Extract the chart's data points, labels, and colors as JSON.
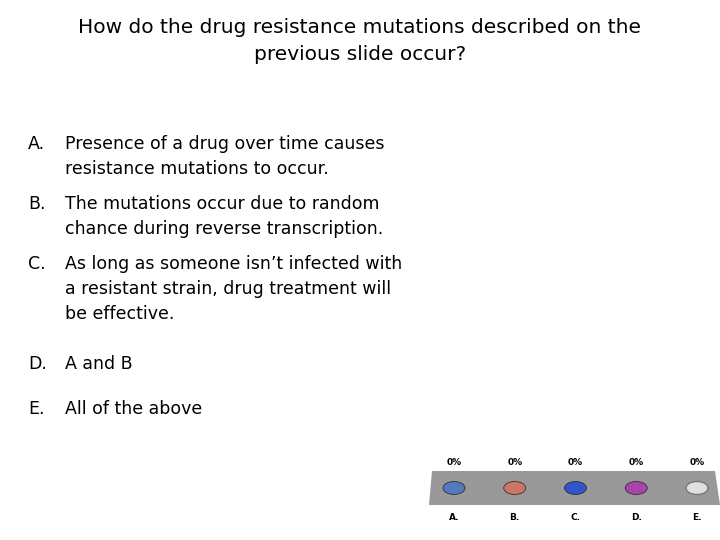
{
  "title_line1": "How do the drug resistance mutations described on the",
  "title_line2": "previous slide occur?",
  "background_color": "#ffffff",
  "text_color": "#000000",
  "title_fontsize": 14.5,
  "body_fontsize": 12.5,
  "options": [
    {
      "label": "A.",
      "text": "Presence of a drug over time causes\nresistance mutations to occur."
    },
    {
      "label": "B.",
      "text": "The mutations occur due to random\nchance during reverse transcription."
    },
    {
      "label": "C.",
      "text": "As long as someone isn’t infected with\na resistant strain, drug treatment will\nbe effective."
    },
    {
      "label": "D.",
      "text": "A and B"
    },
    {
      "label": "E.",
      "text": "All of the above"
    }
  ],
  "bar_color": "#999999",
  "button_colors": [
    "#5577bb",
    "#cc7766",
    "#3355cc",
    "#aa44aa",
    "#e8e8e8"
  ],
  "button_labels": [
    "A.",
    "B.",
    "C.",
    "D.",
    "E."
  ],
  "pct_labels": [
    "0%",
    "0%",
    "0%",
    "0%",
    "0%"
  ],
  "font_family": "DejaVu Sans"
}
